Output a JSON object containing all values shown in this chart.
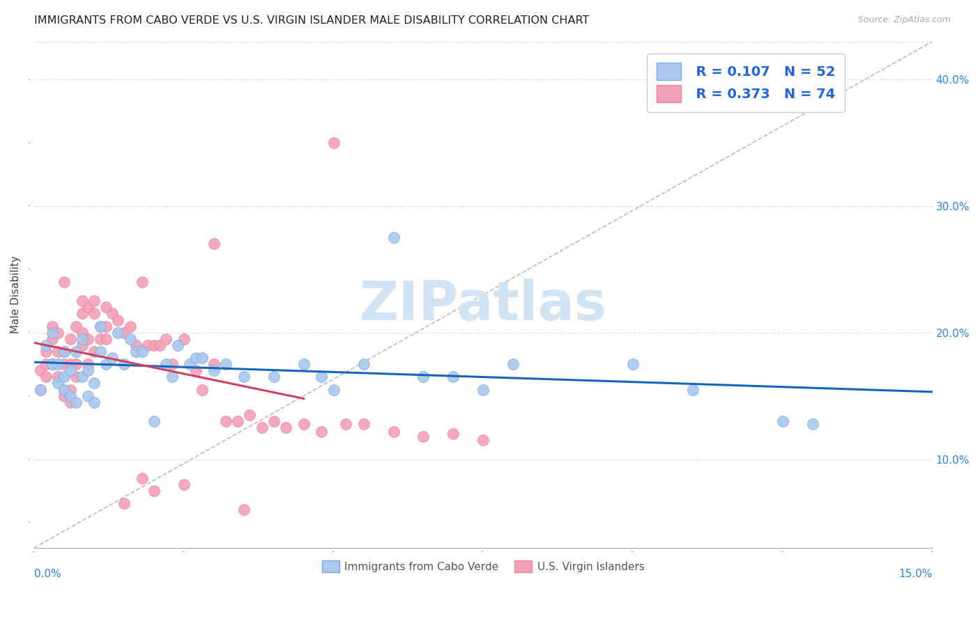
{
  "title": "IMMIGRANTS FROM CABO VERDE VS U.S. VIRGIN ISLANDER MALE DISABILITY CORRELATION CHART",
  "source": "Source: ZipAtlas.com",
  "ylabel": "Male Disability",
  "y_ticks": [
    0.1,
    0.2,
    0.3,
    0.4
  ],
  "y_tick_labels": [
    "10.0%",
    "20.0%",
    "30.0%",
    "40.0%"
  ],
  "x_range": [
    0.0,
    0.15
  ],
  "y_range": [
    0.03,
    0.43
  ],
  "legend_blue_R": "R = 0.107",
  "legend_blue_N": "N = 52",
  "legend_pink_R": "R = 0.373",
  "legend_pink_N": "N = 74",
  "legend_label_blue": "Immigrants from Cabo Verde",
  "legend_label_pink": "U.S. Virgin Islanders",
  "color_blue": "#A8C8EE",
  "color_pink": "#F4A0B8",
  "color_blue_edge": "#7AAADD",
  "color_pink_edge": "#E888A0",
  "color_blue_line": "#1565C0",
  "color_pink_line": "#D04060",
  "color_diag_line": "#BBBBBB",
  "watermark_color": "#D0E4F4",
  "blue_scatter_x": [
    0.001,
    0.002,
    0.003,
    0.003,
    0.004,
    0.004,
    0.005,
    0.005,
    0.005,
    0.006,
    0.006,
    0.007,
    0.007,
    0.008,
    0.008,
    0.009,
    0.009,
    0.01,
    0.01,
    0.011,
    0.011,
    0.012,
    0.013,
    0.014,
    0.015,
    0.016,
    0.017,
    0.018,
    0.02,
    0.022,
    0.023,
    0.024,
    0.026,
    0.027,
    0.028,
    0.03,
    0.032,
    0.035,
    0.04,
    0.045,
    0.048,
    0.05,
    0.055,
    0.06,
    0.065,
    0.07,
    0.075,
    0.08,
    0.1,
    0.11,
    0.125,
    0.13
  ],
  "blue_scatter_y": [
    0.155,
    0.19,
    0.2,
    0.175,
    0.175,
    0.16,
    0.185,
    0.165,
    0.155,
    0.17,
    0.15,
    0.145,
    0.185,
    0.195,
    0.165,
    0.17,
    0.15,
    0.16,
    0.145,
    0.205,
    0.185,
    0.175,
    0.18,
    0.2,
    0.175,
    0.195,
    0.185,
    0.185,
    0.13,
    0.175,
    0.165,
    0.19,
    0.175,
    0.18,
    0.18,
    0.17,
    0.175,
    0.165,
    0.165,
    0.175,
    0.165,
    0.155,
    0.175,
    0.275,
    0.165,
    0.165,
    0.155,
    0.175,
    0.175,
    0.155,
    0.13,
    0.128
  ],
  "pink_scatter_x": [
    0.001,
    0.001,
    0.002,
    0.002,
    0.002,
    0.003,
    0.003,
    0.003,
    0.004,
    0.004,
    0.004,
    0.005,
    0.005,
    0.005,
    0.005,
    0.006,
    0.006,
    0.006,
    0.006,
    0.007,
    0.007,
    0.007,
    0.008,
    0.008,
    0.008,
    0.009,
    0.009,
    0.009,
    0.01,
    0.01,
    0.011,
    0.011,
    0.012,
    0.012,
    0.013,
    0.014,
    0.015,
    0.016,
    0.017,
    0.018,
    0.019,
    0.02,
    0.021,
    0.022,
    0.023,
    0.025,
    0.027,
    0.028,
    0.03,
    0.032,
    0.034,
    0.036,
    0.038,
    0.04,
    0.042,
    0.045,
    0.048,
    0.052,
    0.055,
    0.06,
    0.065,
    0.07,
    0.075,
    0.05,
    0.03,
    0.035,
    0.005,
    0.008,
    0.01,
    0.012,
    0.015,
    0.02,
    0.025,
    0.018
  ],
  "pink_scatter_y": [
    0.155,
    0.17,
    0.185,
    0.175,
    0.165,
    0.195,
    0.205,
    0.175,
    0.185,
    0.165,
    0.2,
    0.155,
    0.15,
    0.185,
    0.175,
    0.155,
    0.175,
    0.195,
    0.145,
    0.165,
    0.175,
    0.205,
    0.19,
    0.215,
    0.2,
    0.175,
    0.22,
    0.195,
    0.185,
    0.225,
    0.195,
    0.205,
    0.195,
    0.205,
    0.215,
    0.21,
    0.2,
    0.205,
    0.19,
    0.24,
    0.19,
    0.19,
    0.19,
    0.195,
    0.175,
    0.195,
    0.17,
    0.155,
    0.175,
    0.13,
    0.13,
    0.135,
    0.125,
    0.13,
    0.125,
    0.128,
    0.122,
    0.128,
    0.128,
    0.122,
    0.118,
    0.12,
    0.115,
    0.35,
    0.27,
    0.06,
    0.24,
    0.225,
    0.215,
    0.22,
    0.065,
    0.075,
    0.08,
    0.085
  ]
}
